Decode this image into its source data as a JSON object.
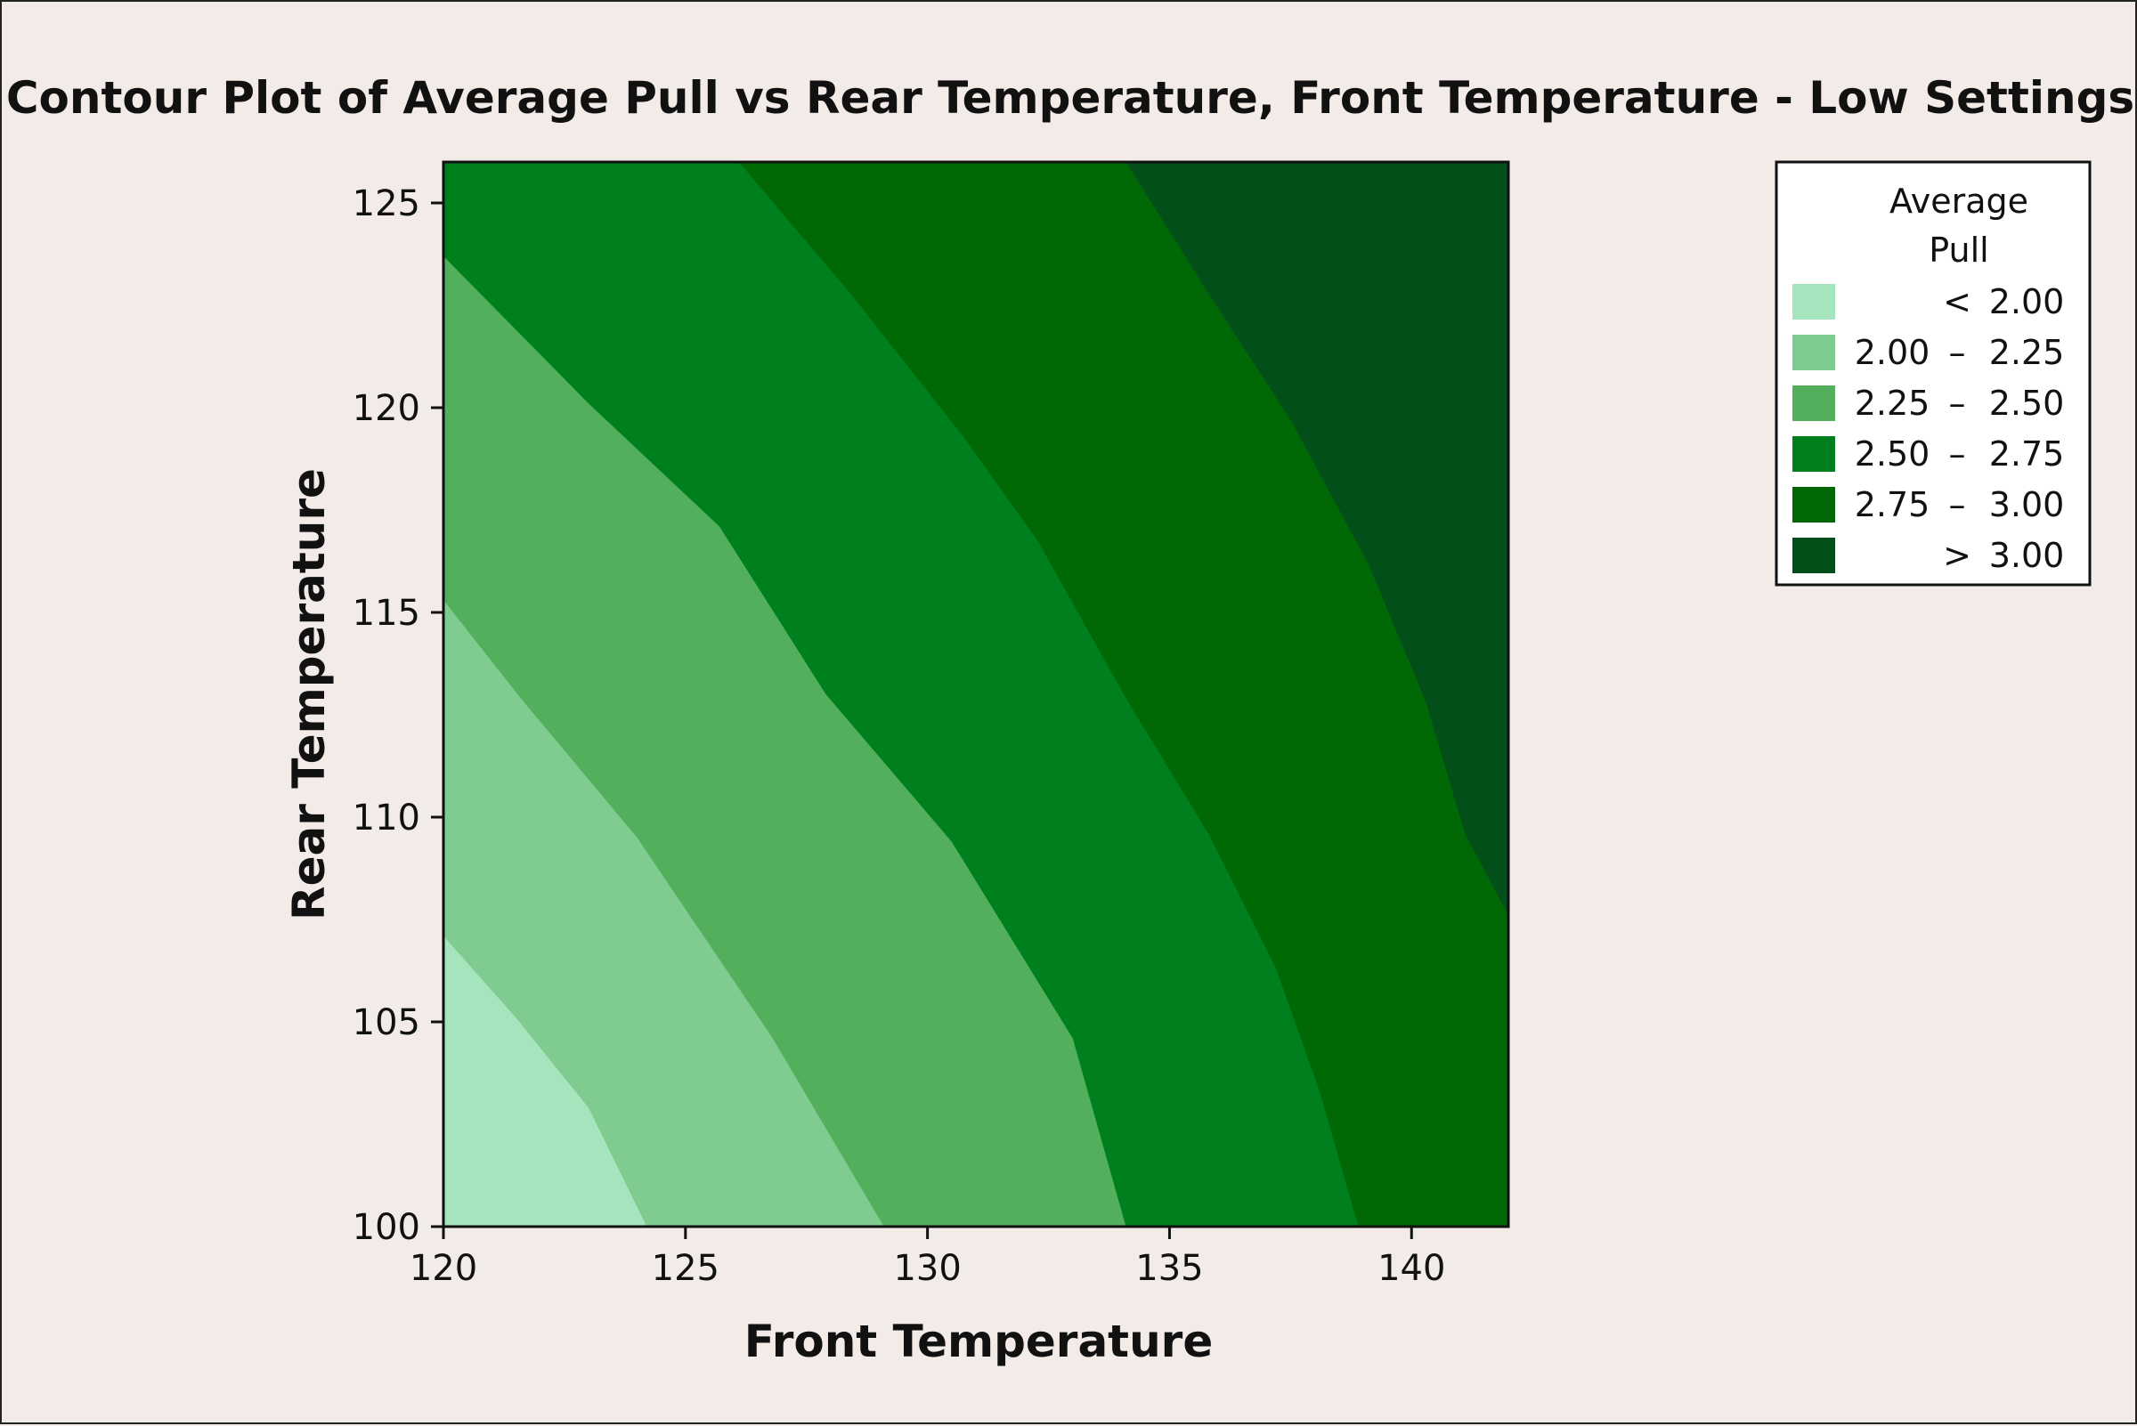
{
  "chart_data": {
    "type": "contour",
    "title": "Contour Plot of Average Pull vs Rear Temperature, Front Temperature - Low Settings",
    "xlabel": "Front Temperature",
    "ylabel": "Rear Temperature",
    "xlim": [
      120,
      142
    ],
    "ylim": [
      100,
      126
    ],
    "x_ticks": [
      120,
      125,
      130,
      135,
      140
    ],
    "y_ticks": [
      100,
      105,
      110,
      115,
      120,
      125
    ],
    "legend": {
      "title": [
        "Average",
        "Pull"
      ],
      "placement": "top-right",
      "entries": [
        {
          "op": "<",
          "low": "",
          "high": "2.00",
          "sep": "",
          "color": "#a6e4bd"
        },
        {
          "op": "",
          "low": "2.00",
          "high": "2.25",
          "sep": "–",
          "color": "#80cb8f"
        },
        {
          "op": "",
          "low": "2.25",
          "high": "2.50",
          "sep": "–",
          "color": "#52b05c"
        },
        {
          "op": "",
          "low": "2.50",
          "high": "2.75",
          "sep": "–",
          "color": "#007f1f"
        },
        {
          "op": "",
          "low": "2.75",
          "high": "3.00",
          "sep": "–",
          "color": "#006906"
        },
        {
          "op": ">",
          "low": "",
          "high": "3.00",
          "sep": "",
          "color": "#034f1a"
        }
      ]
    },
    "contour_boundaries": [
      {
        "level": 2.0,
        "points": [
          [
            120,
            107.1
          ],
          [
            121.5,
            105.1
          ],
          [
            123,
            102.9
          ],
          [
            124.2,
            100
          ]
        ]
      },
      {
        "level": 2.25,
        "points": [
          [
            120,
            115.3
          ],
          [
            121.6,
            112.9
          ],
          [
            124,
            109.5
          ],
          [
            126.8,
            104.6
          ],
          [
            129.1,
            100
          ]
        ]
      },
      {
        "level": 2.5,
        "points": [
          [
            120,
            123.7
          ],
          [
            123,
            120.1
          ],
          [
            125.7,
            117.1
          ],
          [
            127.9,
            113
          ],
          [
            130.5,
            109.4
          ],
          [
            133,
            104.6
          ],
          [
            134.1,
            100
          ]
        ]
      },
      {
        "level": 2.75,
        "points": [
          [
            126.1,
            126
          ],
          [
            128.4,
            122.8
          ],
          [
            130.8,
            119.2
          ],
          [
            132.3,
            116.7
          ],
          [
            134.1,
            112.9
          ],
          [
            135.8,
            109.6
          ],
          [
            137.2,
            106.3
          ],
          [
            138.1,
            103.3
          ],
          [
            138.9,
            100
          ]
        ]
      },
      {
        "level": 3.0,
        "points": [
          [
            134.1,
            126
          ],
          [
            135.8,
            122.8
          ],
          [
            137.5,
            119.7
          ],
          [
            139.1,
            116.2
          ],
          [
            140.3,
            112.8
          ],
          [
            141.1,
            109.6
          ],
          [
            142,
            107.6
          ]
        ]
      }
    ]
  }
}
